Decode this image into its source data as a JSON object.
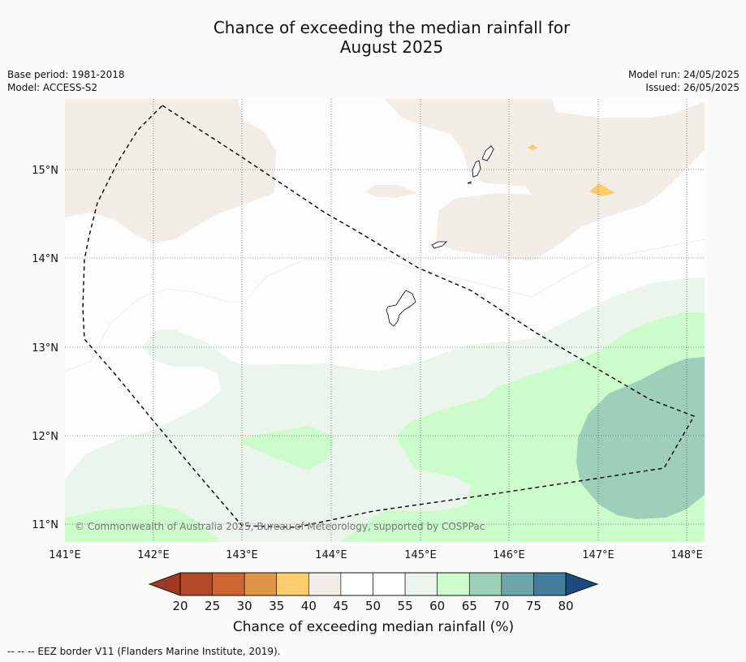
{
  "title": {
    "line1": "Chance of exceeding the median rainfall for",
    "line2": "August 2025"
  },
  "meta": {
    "base_period": "Base period: 1981-2018",
    "model": "Model: ACCESS-S2",
    "model_run": "Model run: 24/05/2025",
    "issued": "Issued: 26/05/2025"
  },
  "map": {
    "lon_range": [
      141.0,
      148.2
    ],
    "lat_range": [
      10.8,
      15.8
    ],
    "lon_ticks": [
      "141°E",
      "142°E",
      "143°E",
      "144°E",
      "145°E",
      "146°E",
      "147°E",
      "148°E"
    ],
    "lat_ticks": [
      "15°N",
      "14°N",
      "13°N",
      "12°N",
      "11°N"
    ],
    "copyright": "© Commonwealth of Australia 2025, Bureau of Meteorology, supported by COSPPac"
  },
  "colorbar": {
    "labels": [
      "20",
      "25",
      "30",
      "35",
      "40",
      "45",
      "50",
      "55",
      "60",
      "65",
      "70",
      "75",
      "80"
    ],
    "colors": [
      "#b34a27",
      "#cc6633",
      "#e09448",
      "#fccd6a",
      "#f2ede7",
      "#ffffff",
      "#ffffff",
      "#ebf5eb",
      "#ccfccc",
      "#9dcfb9",
      "#6fa5a8",
      "#437d9a"
    ],
    "under_color": "#9e3a22",
    "over_color": "#1a4a80",
    "title": "Chance of exceeding median rainfall (%)"
  },
  "footer": "--  --  -- EEZ border V11 (Flanders Marine Institute, 2019)."
}
